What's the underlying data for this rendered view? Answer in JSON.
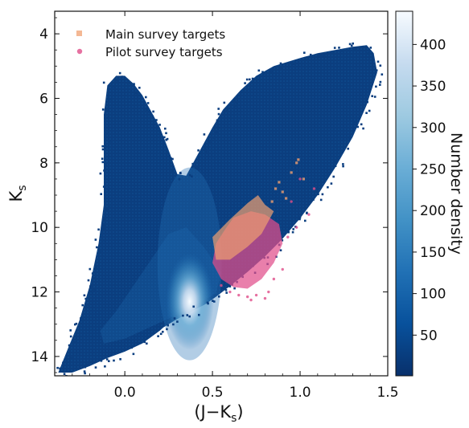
{
  "chart_data": {
    "type": "heatmap",
    "title": "",
    "xlabel": "(J−K",
    "xlabel_sub": "s",
    "xlabel_close": ")",
    "ylabel": "K",
    "ylabel_sub": "s",
    "xlim": [
      -0.4,
      1.5
    ],
    "ylim": [
      14.6,
      3.3
    ],
    "y_inverted": true,
    "x_ticks": [
      0.0,
      0.5,
      1.0,
      1.5
    ],
    "x_tick_labels": [
      "0.0",
      "0.5",
      "1.0",
      "1.5"
    ],
    "y_ticks": [
      4,
      6,
      8,
      10,
      12,
      14
    ],
    "y_tick_labels": [
      "4",
      "6",
      "8",
      "10",
      "12",
      "14"
    ],
    "grid": false,
    "legend_position": "top-left",
    "colorbar": {
      "label": "Number density",
      "range": [
        1,
        440
      ],
      "ticks": [
        50,
        100,
        150,
        200,
        250,
        300,
        350,
        400
      ],
      "tick_labels": [
        "50",
        "100",
        "150",
        "200",
        "250",
        "300",
        "350",
        "400"
      ],
      "colormap": [
        "#08306b",
        "#08519c",
        "#2171b5",
        "#4292c6",
        "#6baed6",
        "#9ecae1",
        "#c6dbef",
        "#f7fbff"
      ]
    },
    "density_envelope": {
      "outline_x": [
        -0.38,
        -0.3,
        -0.2,
        -0.1,
        0.0,
        0.1,
        0.15,
        0.2,
        0.22,
        0.28,
        0.32,
        0.36,
        0.4,
        0.46,
        0.52,
        0.6,
        0.7,
        0.8,
        0.9,
        1.0,
        1.1,
        1.2,
        1.3,
        1.38,
        1.44,
        1.42,
        1.38,
        1.3,
        1.2,
        1.1,
        1.0,
        0.85,
        0.75,
        0.66,
        0.56,
        0.5,
        0.45,
        0.4,
        0.35,
        0.3,
        0.25,
        0.2,
        0.15,
        0.1,
        0.05,
        0.0,
        -0.05,
        -0.1,
        -0.12,
        -0.12,
        -0.12,
        -0.15,
        -0.2,
        -0.26,
        -0.32,
        -0.38
      ],
      "outline_y": [
        14.5,
        14.5,
        14.3,
        14.05,
        13.85,
        13.6,
        13.4,
        13.2,
        13.1,
        12.9,
        12.78,
        12.68,
        12.55,
        12.38,
        12.15,
        11.82,
        11.38,
        10.9,
        10.35,
        9.72,
        9.0,
        8.15,
        7.2,
        6.2,
        5.2,
        4.6,
        4.35,
        4.4,
        4.5,
        4.6,
        4.75,
        5.0,
        5.3,
        5.75,
        6.35,
        6.9,
        7.4,
        7.9,
        8.4,
        8.35,
        7.6,
        6.9,
        6.4,
        5.9,
        5.55,
        5.3,
        5.3,
        5.6,
        6.5,
        7.5,
        9.3,
        10.5,
        11.8,
        12.9,
        13.7,
        14.5
      ],
      "peak_x": 0.37,
      "peak_y": 12.5,
      "peak_density": 440
    },
    "series": [
      {
        "name": "Main survey targets",
        "marker": "square",
        "color": "#f0a070",
        "region_x": [
          0.5,
          0.6,
          0.7,
          0.76,
          0.8,
          0.85,
          0.78,
          0.7,
          0.6,
          0.52
        ],
        "region_y": [
          10.3,
          9.75,
          9.25,
          9.0,
          9.3,
          9.5,
          10.2,
          10.6,
          11.0,
          11.0
        ],
        "scatter_x": [
          0.98,
          0.95,
          1.02,
          0.9,
          0.92,
          0.88,
          0.99,
          0.84,
          0.86
        ],
        "scatter_y": [
          8.0,
          8.3,
          8.5,
          8.9,
          9.1,
          8.6,
          7.9,
          9.2,
          8.8
        ]
      },
      {
        "name": "Pilot survey targets",
        "marker": "circle",
        "color": "#e04e8a",
        "region_x": [
          0.52,
          0.58,
          0.62,
          0.72,
          0.8,
          0.88,
          0.9,
          0.85,
          0.78,
          0.7,
          0.62,
          0.55,
          0.5
        ],
        "region_y": [
          10.5,
          10.0,
          9.7,
          9.5,
          9.6,
          9.9,
          10.5,
          11.1,
          11.6,
          11.9,
          11.85,
          11.6,
          11.1
        ],
        "scatter_x": [
          0.95,
          1.0,
          1.05,
          0.98,
          0.93,
          1.08,
          0.82,
          0.75,
          0.7,
          0.65,
          0.6,
          0.55,
          0.85,
          0.9,
          0.8,
          0.72
        ],
        "scatter_y": [
          9.2,
          8.5,
          9.6,
          10.0,
          10.3,
          8.8,
          12.0,
          12.1,
          12.15,
          12.1,
          12.0,
          11.8,
          11.6,
          11.3,
          12.2,
          12.25
        ]
      }
    ]
  }
}
